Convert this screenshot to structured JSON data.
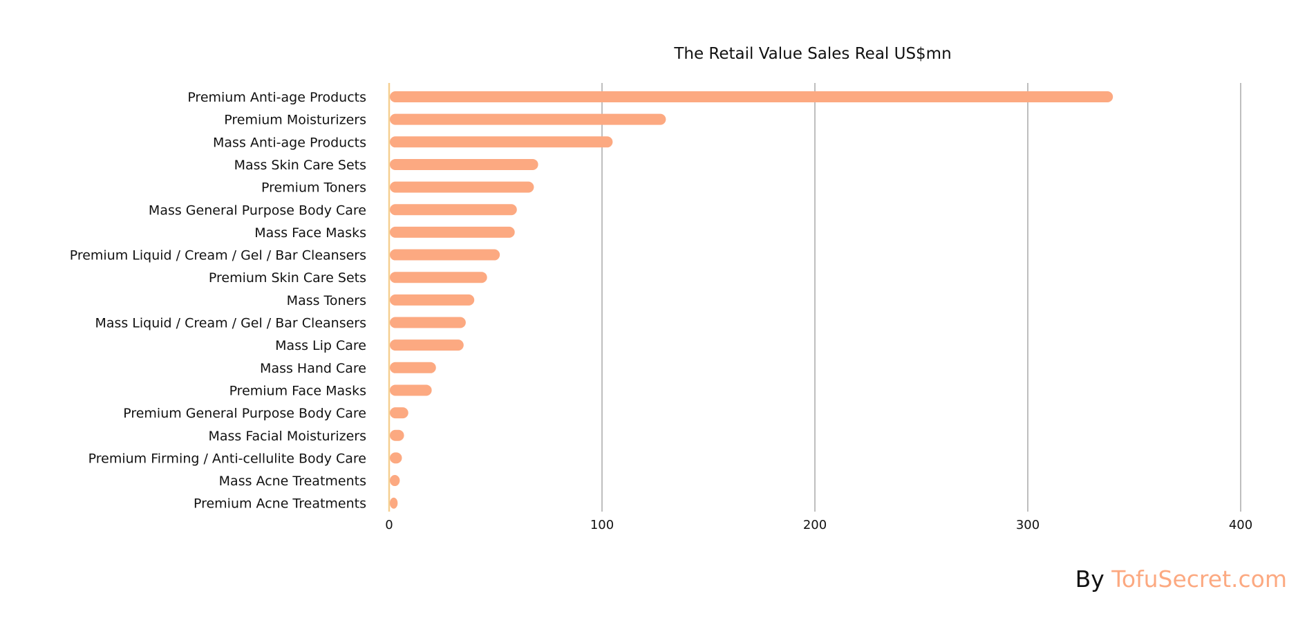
{
  "chart_data": {
    "type": "bar",
    "orientation": "horizontal",
    "title": "The Retail Value Sales Real US$mn",
    "xlabel": "",
    "ylabel": "",
    "xlim": [
      0,
      400
    ],
    "xticks": [
      "0",
      "100",
      "200",
      "300",
      "400"
    ],
    "grid": true,
    "legend": "none",
    "categories": [
      "Premium Anti-age Products",
      "Premium Moisturizers",
      "Mass Anti-age Products",
      "Mass Skin Care Sets",
      "Premium Toners",
      "Mass General Purpose Body Care",
      "Mass Face Masks",
      "Premium Liquid / Cream / Gel / Bar Cleansers",
      "Premium Skin Care Sets",
      "Mass Toners",
      "Mass Liquid / Cream / Gel / Bar Cleansers",
      "Mass Lip Care",
      "Mass Hand Care",
      "Premium Face Masks",
      "Premium General Purpose Body Care",
      "Mass Facial Moisturizers",
      "Premium Firming / Anti-cellulite Body Care",
      "Mass Acne Treatments",
      "Premium Acne Treatments"
    ],
    "values": [
      340,
      130,
      105,
      70,
      68,
      60,
      59,
      52,
      46,
      40,
      36,
      35,
      22,
      20,
      9,
      7,
      6,
      5,
      4
    ]
  },
  "colors": {
    "bar": "#FCA981",
    "baseline": "#F5CF90",
    "grid": "#BEBEBE",
    "text": "#111111"
  },
  "credit": {
    "by": "By",
    "site": "TofuSecret.com"
  }
}
